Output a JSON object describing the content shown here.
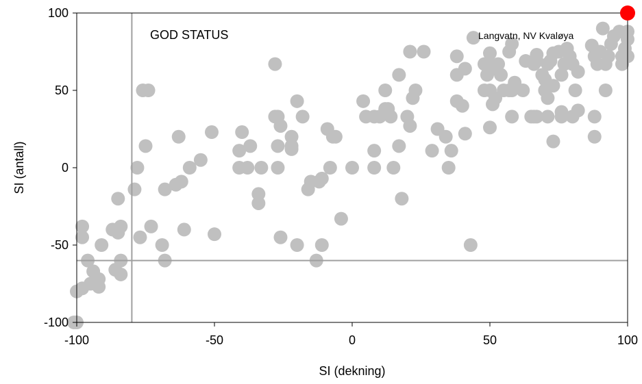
{
  "chart_data": {
    "type": "scatter",
    "title": "",
    "xlabel": "SI (dekning)",
    "ylabel": "SI (antall)",
    "xlim": [
      -100,
      100
    ],
    "ylim": [
      -100,
      100
    ],
    "xticks": [
      -100,
      -50,
      0,
      50,
      100
    ],
    "yticks": [
      -100,
      -50,
      0,
      50,
      100
    ],
    "grid": false,
    "annotations": {
      "status_label": "GOD STATUS",
      "site_label": "Langvatn, NV Kvaløya"
    },
    "reference_lines": {
      "x": -80,
      "y": -60
    },
    "colors": {
      "points": "#c0c0c0",
      "highlight": "#ff0000",
      "reference_lines": "#a0a0a0",
      "frame": "#000000"
    },
    "highlight_point": {
      "x": 100,
      "y": 100
    },
    "series": [
      {
        "points": [
          [
            -100,
            -100
          ],
          [
            -101,
            -100
          ],
          [
            -100,
            -80
          ],
          [
            -98,
            -78
          ],
          [
            -98,
            -38
          ],
          [
            -98,
            -45
          ],
          [
            -96,
            -60
          ],
          [
            -95,
            -75
          ],
          [
            -94,
            -67
          ],
          [
            -92,
            -72
          ],
          [
            -92,
            -77
          ],
          [
            -91,
            -50
          ],
          [
            -87,
            -40
          ],
          [
            -86,
            -66
          ],
          [
            -85,
            -42
          ],
          [
            -84,
            -38
          ],
          [
            -85,
            -20
          ],
          [
            -84,
            -69
          ],
          [
            -84,
            -60
          ],
          [
            -79,
            -14
          ],
          [
            -78,
            0
          ],
          [
            -77,
            -45
          ],
          [
            -76,
            50
          ],
          [
            -74,
            50
          ],
          [
            -75,
            14
          ],
          [
            -73,
            -38
          ],
          [
            -69,
            -50
          ],
          [
            -68,
            -60
          ],
          [
            -68,
            -14
          ],
          [
            -64,
            -11
          ],
          [
            -63,
            20
          ],
          [
            -62,
            -9
          ],
          [
            -61,
            -40
          ],
          [
            -59,
            0
          ],
          [
            -55,
            5
          ],
          [
            -51,
            23
          ],
          [
            -50,
            -43
          ],
          [
            -41,
            11
          ],
          [
            -41,
            0
          ],
          [
            -40,
            23
          ],
          [
            -37,
            14
          ],
          [
            -38,
            0
          ],
          [
            -34,
            -23
          ],
          [
            -34,
            -17
          ],
          [
            -33,
            0
          ],
          [
            -28,
            67
          ],
          [
            -28,
            33
          ],
          [
            -27,
            33
          ],
          [
            -27,
            14
          ],
          [
            -26,
            27
          ],
          [
            -27,
            0
          ],
          [
            -26,
            -45
          ],
          [
            -22,
            20
          ],
          [
            -22,
            14
          ],
          [
            -22,
            12
          ],
          [
            -20,
            43
          ],
          [
            -20,
            -50
          ],
          [
            -18,
            33
          ],
          [
            -16,
            -14
          ],
          [
            -15,
            -9
          ],
          [
            -13,
            -60
          ],
          [
            -12,
            -9
          ],
          [
            -11,
            -50
          ],
          [
            -11,
            -7
          ],
          [
            -9,
            25
          ],
          [
            -8,
            0
          ],
          [
            -7,
            20
          ],
          [
            -6,
            20
          ],
          [
            -4,
            -33
          ],
          [
            0,
            0
          ],
          [
            4,
            43
          ],
          [
            5,
            33
          ],
          [
            8,
            33
          ],
          [
            8,
            0
          ],
          [
            8,
            11
          ],
          [
            10,
            33
          ],
          [
            12,
            50
          ],
          [
            12,
            38
          ],
          [
            13,
            38
          ],
          [
            14,
            33
          ],
          [
            15,
            0
          ],
          [
            17,
            60
          ],
          [
            17,
            14
          ],
          [
            18,
            -20
          ],
          [
            20,
            33
          ],
          [
            21,
            75
          ],
          [
            21,
            27
          ],
          [
            22,
            45
          ],
          [
            23,
            50
          ],
          [
            26,
            75
          ],
          [
            29,
            11
          ],
          [
            31,
            25
          ],
          [
            34,
            20
          ],
          [
            35,
            0
          ],
          [
            36,
            11
          ],
          [
            38,
            72
          ],
          [
            38,
            60
          ],
          [
            38,
            43
          ],
          [
            40,
            40
          ],
          [
            41,
            64
          ],
          [
            41,
            22
          ],
          [
            43,
            -50
          ],
          [
            44,
            84
          ],
          [
            48,
            67
          ],
          [
            48,
            50
          ],
          [
            49,
            60
          ],
          [
            50,
            67
          ],
          [
            50,
            74
          ],
          [
            50,
            50
          ],
          [
            50,
            26
          ],
          [
            51,
            64
          ],
          [
            52,
            45
          ],
          [
            51,
            41
          ],
          [
            53,
            67
          ],
          [
            54,
            60
          ],
          [
            55,
            50
          ],
          [
            57,
            75
          ],
          [
            57,
            50
          ],
          [
            58,
            33
          ],
          [
            58,
            80
          ],
          [
            58,
            50
          ],
          [
            59,
            55
          ],
          [
            62,
            50
          ],
          [
            63,
            69
          ],
          [
            65,
            33
          ],
          [
            66,
            67
          ],
          [
            66,
            33
          ],
          [
            67,
            73
          ],
          [
            67,
            69
          ],
          [
            67,
            33
          ],
          [
            69,
            60
          ],
          [
            70,
            50
          ],
          [
            70,
            57
          ],
          [
            71,
            67
          ],
          [
            71,
            45
          ],
          [
            71,
            33
          ],
          [
            72,
            69
          ],
          [
            73,
            74
          ],
          [
            73,
            53
          ],
          [
            73,
            17
          ],
          [
            75,
            75
          ],
          [
            76,
            60
          ],
          [
            76,
            36
          ],
          [
            76,
            33
          ],
          [
            77,
            67
          ],
          [
            78,
            77
          ],
          [
            79,
            72
          ],
          [
            80,
            33
          ],
          [
            80,
            67
          ],
          [
            81,
            50
          ],
          [
            82,
            37
          ],
          [
            82,
            62
          ],
          [
            87,
            79
          ],
          [
            88,
            72
          ],
          [
            88,
            20
          ],
          [
            88,
            33
          ],
          [
            89,
            67
          ],
          [
            90,
            75
          ],
          [
            91,
            90
          ],
          [
            92,
            67
          ],
          [
            92,
            50
          ],
          [
            93,
            72
          ],
          [
            94,
            80
          ],
          [
            95,
            85
          ],
          [
            97,
            88
          ],
          [
            98,
            67
          ],
          [
            98,
            72
          ],
          [
            99,
            77
          ],
          [
            100,
            83
          ],
          [
            100,
            88
          ],
          [
            100,
            72
          ]
        ]
      }
    ]
  }
}
